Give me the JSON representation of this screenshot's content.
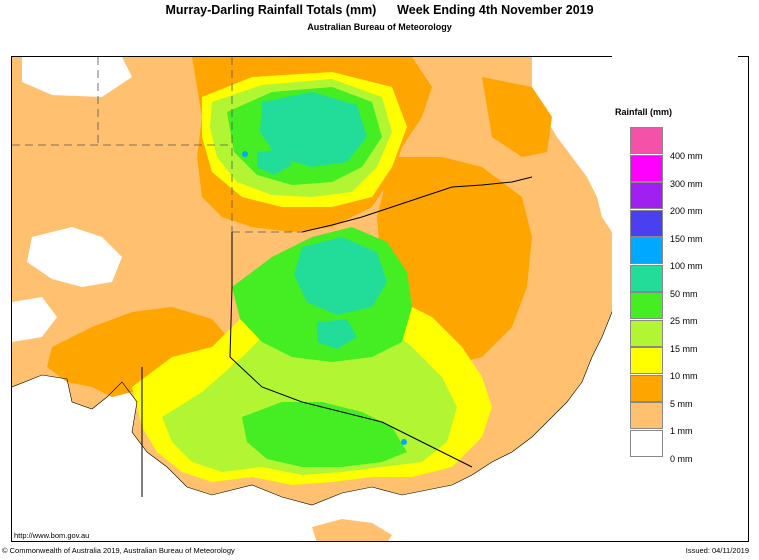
{
  "title": "Murray-Darling Rainfall Totals (mm)      Week Ending 4th November 2019",
  "subtitle": "Australian Bureau of Meteorology",
  "legend": {
    "title": "Rainfall (mm)",
    "items": [
      {
        "label": "400 mm",
        "color": "#f352a8"
      },
      {
        "label": "300 mm",
        "color": "#ff00ff"
      },
      {
        "label": "200 mm",
        "color": "#a020f0"
      },
      {
        "label": "150 mm",
        "color": "#4a40f0"
      },
      {
        "label": "100 mm",
        "color": "#00a8ff"
      },
      {
        "label": "50 mm",
        "color": "#22dd9a"
      },
      {
        "label": "25 mm",
        "color": "#44ee22"
      },
      {
        "label": "15 mm",
        "color": "#b2f532"
      },
      {
        "label": "10 mm",
        "color": "#ffff00"
      },
      {
        "label": "5 mm",
        "color": "#ffa500"
      },
      {
        "label": "1 mm",
        "color": "#ffc070"
      },
      {
        "label": "0 mm",
        "color": "#ffffff"
      }
    ]
  },
  "map": {
    "url": "http://www.bom.gov.au",
    "colors": {
      "none": "#ffffff",
      "light": "#ffc070",
      "orange": "#ffa500",
      "yellow": "#ffff00",
      "lime": "#b2f532",
      "green": "#44ee22",
      "teal": "#22dd9a",
      "blue": "#00a8ff",
      "ocean": "#ffffff"
    }
  },
  "footer": {
    "copyright": "© Commonwealth of Australia 2019, Australian Bureau of Meteorology",
    "issued": "Issued: 04/11/2019"
  }
}
